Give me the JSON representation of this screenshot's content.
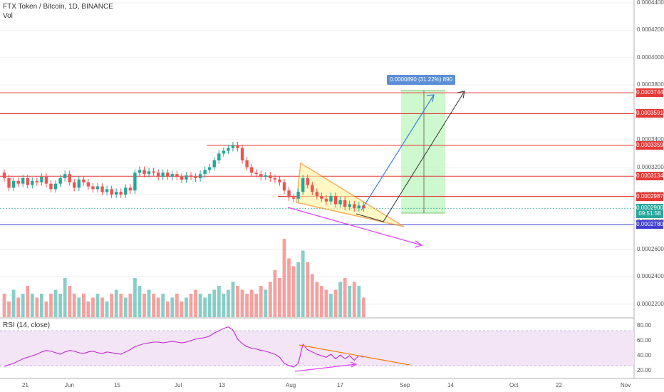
{
  "chart": {
    "title": "FTX Token / Bitcoin, 1D, BINANCE",
    "volume_label": "Vol",
    "rsi_label": "RSI (14, close)",
    "measure_text": "0.0000890 (31.22%) 890",
    "countdown": "09:51:58"
  },
  "colors": {
    "up": "#26a69a",
    "down": "#ef5350",
    "resistance": "#e53935",
    "support": "#3f3fcf",
    "wedge_fill": "#fff59d",
    "wedge_stroke": "#f57c00",
    "rsi_line": "#c026d3",
    "rsi_band": "#f3e5f5",
    "measure_fill": "#b9f6b9",
    "arrow_blue": "#3f7fdc",
    "arrow_black": "#333333",
    "arrow_magenta": "#e040fb",
    "last_price": "#26a69a"
  },
  "price_axis_ticks": [
    "0.0004400",
    "0.0004200",
    "0.0004000",
    "0.0003800",
    "0.0003600",
    "0.0003400",
    "0.0003200",
    "0.0003000",
    "0.0002800",
    "0.0002600",
    "0.0002400",
    "0.0002200"
  ],
  "price_levels": [
    {
      "value": "0.0003744",
      "kind": "resistance"
    },
    {
      "value": "0.0003591",
      "kind": "resistance"
    },
    {
      "value": "0.0003359",
      "kind": "resistance"
    },
    {
      "value": "0.0003134",
      "kind": "resistance"
    },
    {
      "value": "0.0002987",
      "kind": "resistance"
    },
    {
      "value": "0.0002900",
      "kind": "last"
    },
    {
      "value": "0.0002780",
      "kind": "support"
    }
  ],
  "rsi_axis_ticks": [
    "80.00",
    "60.00",
    "40.00",
    "20.00"
  ],
  "date_labels": [
    "21",
    "Jun",
    "15",
    "Jul",
    "13",
    "Aug",
    "17",
    "Sep",
    "14",
    "Oct",
    "22",
    "Nov"
  ],
  "chart_data": {
    "type": "candlestick",
    "candles_close": [
      0.000312,
      0.000305,
      0.00031,
      0.000308,
      0.000312,
      0.000307,
      0.00031,
      0.000309,
      0.000313,
      0.000308,
      0.000304,
      0.000308,
      0.000312,
      0.000315,
      0.000309,
      0.000305,
      0.000311,
      0.000309,
      0.000306,
      0.000304,
      0.000306,
      0.000302,
      0.000304,
      0.0003,
      0.000302,
      0.0003,
      0.000305,
      0.000303,
      0.000316,
      0.000318,
      0.000315,
      0.000317,
      0.000316,
      0.000313,
      0.000316,
      0.000313,
      0.000315,
      0.000313,
      0.000311,
      0.000314,
      0.000313,
      0.000312,
      0.000315,
      0.000318,
      0.00032,
      0.000325,
      0.00033,
      0.000332,
      0.000334,
      0.000336,
      0.000334,
      0.000325,
      0.00032,
      0.000316,
      0.000315,
      0.000313,
      0.000314,
      0.000312,
      0.000311,
      0.000309,
      0.000303,
      0.000298,
      0.000297,
      0.000302,
      0.000312,
      0.000307,
      0.000302,
      0.000299,
      0.000297,
      0.000295,
      0.000299,
      0.000293,
      0.000296,
      0.000291,
      0.000293,
      0.00029,
      0.000292,
      0.00029
    ],
    "volume_rel": [
      0.3,
      0.2,
      0.35,
      0.25,
      0.3,
      0.4,
      0.3,
      0.25,
      0.3,
      0.2,
      0.3,
      0.35,
      0.3,
      0.5,
      0.4,
      0.3,
      0.25,
      0.3,
      0.2,
      0.25,
      0.3,
      0.25,
      0.2,
      0.3,
      0.35,
      0.3,
      0.25,
      0.3,
      0.5,
      0.4,
      0.3,
      0.35,
      0.3,
      0.25,
      0.3,
      0.2,
      0.25,
      0.3,
      0.2,
      0.25,
      0.3,
      0.35,
      0.3,
      0.25,
      0.3,
      0.35,
      0.4,
      0.3,
      0.35,
      0.45,
      0.4,
      0.35,
      0.3,
      0.35,
      0.3,
      0.4,
      0.35,
      0.45,
      0.6,
      0.5,
      1.0,
      0.75,
      0.65,
      0.7,
      0.85,
      0.7,
      0.55,
      0.45,
      0.4,
      0.35,
      0.3,
      0.35,
      0.45,
      0.5,
      0.4,
      0.45,
      0.4,
      0.25
    ],
    "rsi": [
      26,
      28,
      30,
      33,
      36,
      38,
      40,
      42,
      45,
      47,
      46,
      44,
      42,
      45,
      47,
      46,
      44,
      43,
      45,
      46,
      44,
      43,
      45,
      44,
      43,
      42,
      45,
      48,
      52,
      54,
      56,
      57,
      58,
      58,
      57,
      58,
      59,
      58,
      57,
      58,
      60,
      62,
      63,
      64,
      66,
      70,
      73,
      76,
      78,
      74,
      62,
      56,
      52,
      50,
      49,
      47,
      46,
      44,
      42,
      38,
      30,
      27,
      25,
      30,
      55,
      48,
      45,
      42,
      40,
      38,
      42,
      36,
      41,
      36,
      40,
      34,
      40,
      38
    ]
  }
}
